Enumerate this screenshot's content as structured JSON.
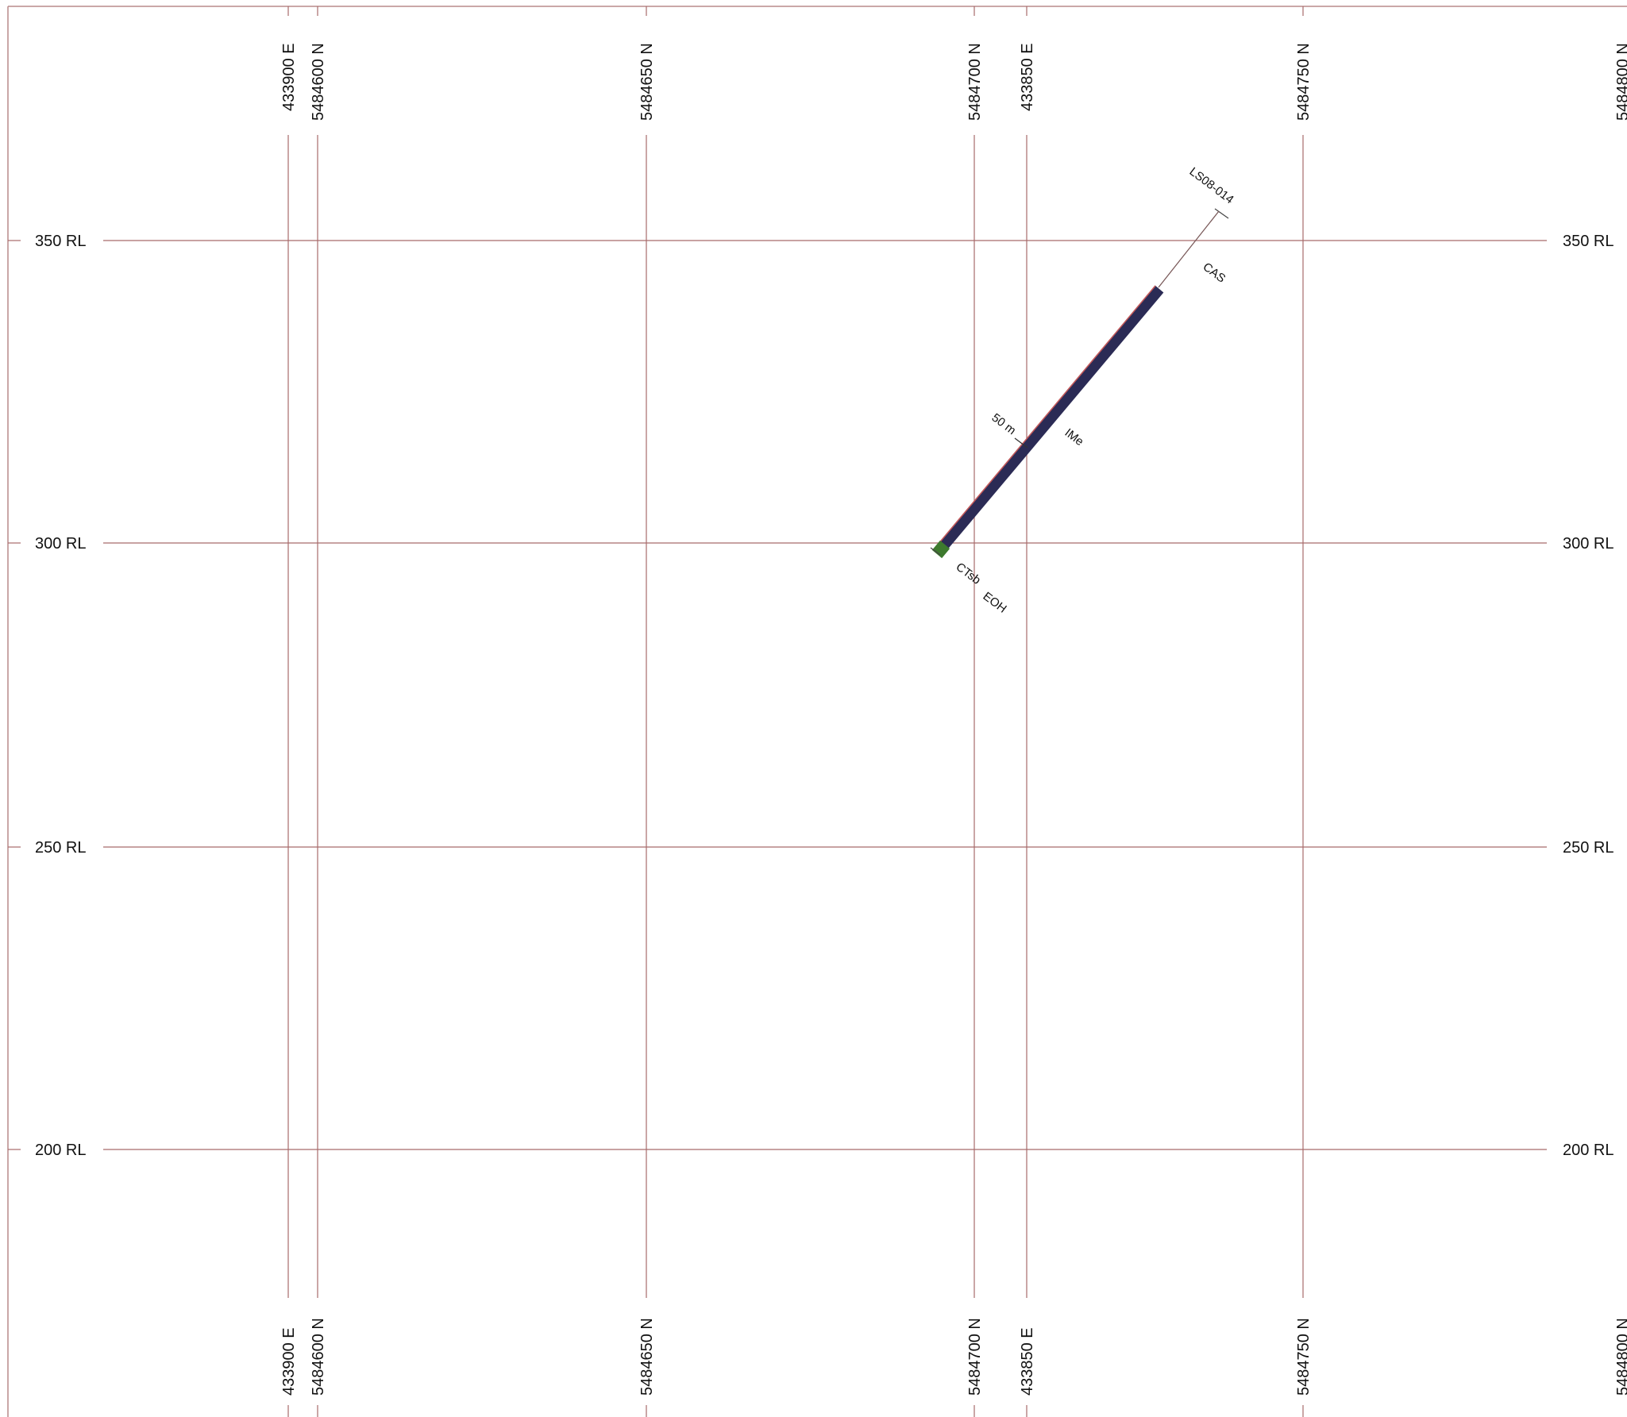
{
  "section": {
    "vertical_lines": [
      {
        "id": "e433900",
        "label": "433900 E"
      },
      {
        "id": "n5484600",
        "label": "5484600 N"
      },
      {
        "id": "n5484650",
        "label": "5484650 N"
      },
      {
        "id": "n5484700",
        "label": "5484700 N"
      },
      {
        "id": "e433850",
        "label": "433850 E"
      },
      {
        "id": "n5484750",
        "label": "5484750 N"
      },
      {
        "id": "n5484800",
        "label": "5484800 N"
      }
    ],
    "rl_lines": [
      {
        "id": "rl350",
        "label": "350 RL"
      },
      {
        "id": "rl300",
        "label": "300 RL"
      },
      {
        "id": "rl250",
        "label": "250 RL"
      },
      {
        "id": "rl200",
        "label": "200 RL"
      }
    ]
  },
  "drillhole": {
    "name": "LS08-014",
    "depth_marker_label": "50 m",
    "eoh_label": "EOH",
    "intervals": [
      {
        "code": "CAS",
        "color": "#ffffff"
      },
      {
        "code": "IMe",
        "color": "#2b2b55"
      },
      {
        "code": "CTsb",
        "color": "#3d7a2e"
      }
    ]
  },
  "colors": {
    "grid": "#a86b6b",
    "trace": "#c75a5a"
  }
}
